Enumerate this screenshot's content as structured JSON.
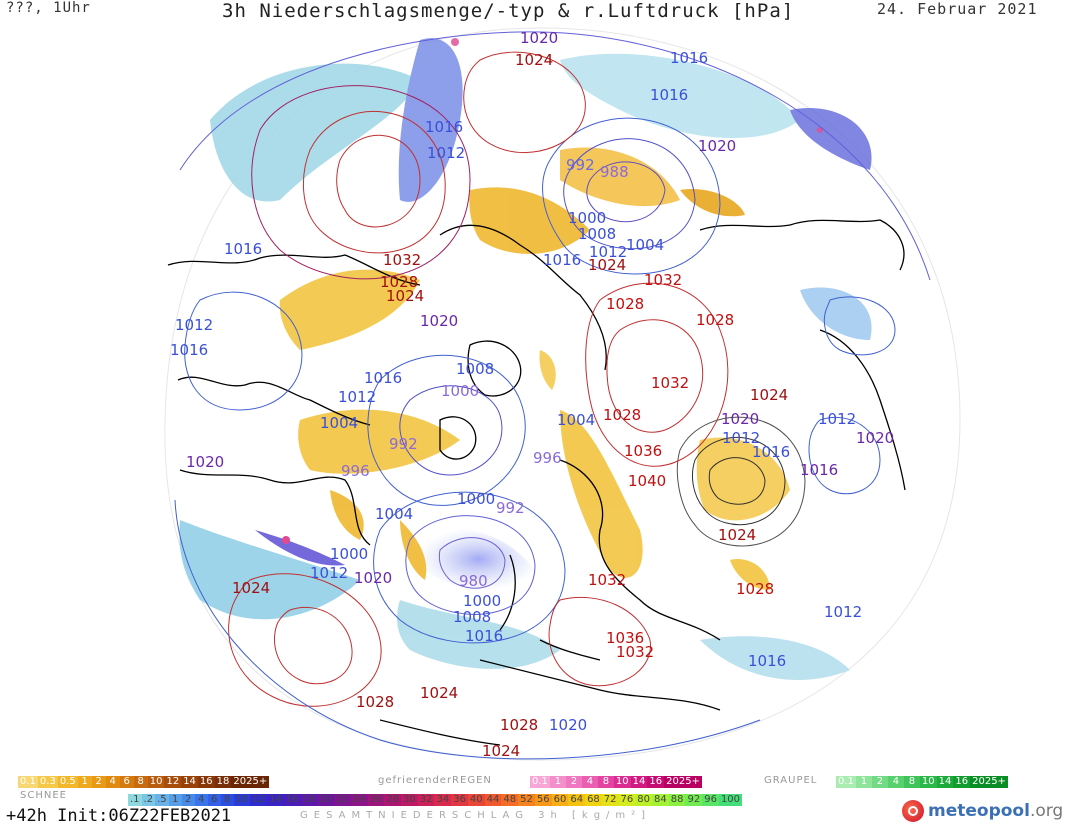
{
  "header": {
    "left": "???, 1Uhr",
    "title": "3h Niederschlagsmenge/-typ & r.Luftdruck [hPa]",
    "date": "24. Februar 2021"
  },
  "footer": {
    "run": "+42h Init:06Z22FEB2021",
    "logo_main": "meteopool",
    "logo_tld": ".org"
  },
  "legend": {
    "snow_label": "SCHNEE",
    "freezing_label": "gefrierenderREGEN",
    "graupel_label": "GRAUPEL",
    "total_label": "GESAMTNIEDERSCHLAG 3h [kg/m²]",
    "snow": [
      "0.1",
      "0.3",
      "0.5",
      "1",
      "2",
      "4",
      "6",
      "8",
      "10",
      "12",
      "14",
      "16",
      "18",
      "2025+"
    ],
    "snow_colors": [
      "#f7d774",
      "#f5c848",
      "#f2b82a",
      "#eeaa1c",
      "#e89a16",
      "#e08a12",
      "#d67a10",
      "#c86a10",
      "#b85c0e",
      "#a84e0c",
      "#98420a",
      "#883808",
      "#782e06",
      "#6a2604"
    ],
    "freezing": [
      "0.1",
      "1",
      "2",
      "4",
      "8",
      "10",
      "14",
      "16",
      "2025+"
    ],
    "freezing_colors": [
      "#f7a6d6",
      "#f390cc",
      "#ef78c0",
      "#ea5eb2",
      "#e344a2",
      "#db2c92",
      "#d01a82",
      "#c40c72",
      "#b80062"
    ],
    "graupel": [
      "0.1",
      "1",
      "2",
      "4",
      "8",
      "10",
      "14",
      "16",
      "2025+"
    ],
    "graupel_colors": [
      "#a8ecb0",
      "#8ee49a",
      "#72da84",
      "#58d06e",
      "#40c45a",
      "#2cb848",
      "#1eaa3a",
      "#129c2e",
      "#088e24"
    ],
    "total": [
      ".1",
      ".2",
      ".5",
      "1",
      "2",
      "4",
      "6",
      "8",
      "10",
      "12",
      "14",
      "16",
      "18",
      "20",
      "22",
      "24",
      "26",
      "28",
      "30",
      "32",
      "34",
      "36",
      "40",
      "44",
      "48",
      "52",
      "56",
      "60",
      "64",
      "68",
      "72",
      "76",
      "80",
      "84",
      "88",
      "92",
      "96",
      "100"
    ],
    "total_colors": [
      "#8ed8e0",
      "#7ac6e4",
      "#68b2e8",
      "#569ee8",
      "#468aea",
      "#3a74ea",
      "#3260e6",
      "#2c4ee0",
      "#2a3cd8",
      "#2e2cce",
      "#3a22c4",
      "#4a1cb8",
      "#5c18ac",
      "#6c16a0",
      "#7c1494",
      "#8c1488",
      "#9c147c",
      "#ac1670",
      "#bc1a64",
      "#cc2058",
      "#d82a4c",
      "#e23642",
      "#ea4638",
      "#f0582e",
      "#f46c26",
      "#f6821e",
      "#f89818",
      "#f8ae14",
      "#f6c212",
      "#f0d412",
      "#e4e216",
      "#d2ec1e",
      "#bcf028",
      "#a4f234",
      "#8af042",
      "#70ec52",
      "#58e664",
      "#44de78"
    ]
  },
  "isobars": [
    {
      "v": "1020",
      "c": "#6a28a8"
    },
    {
      "v": "1016",
      "c": "#3a50d8"
    },
    {
      "v": "1024",
      "c": "#a01010"
    },
    {
      "v": "1016",
      "c": "#3a50d8"
    },
    {
      "v": "1016",
      "c": "#3a50d8"
    },
    {
      "v": "1012",
      "c": "#3a50d8"
    },
    {
      "v": "1020",
      "c": "#6a28a8"
    },
    {
      "v": "992",
      "c": "#6a6ae0"
    },
    {
      "v": "988",
      "c": "#8a6ad8"
    },
    {
      "v": "1000",
      "c": "#3a50d8"
    },
    {
      "v": "1008",
      "c": "#3a50d8"
    },
    {
      "v": "1004",
      "c": "#3a50d8"
    },
    {
      "v": "1012",
      "c": "#3a50d8"
    },
    {
      "v": "1016",
      "c": "#3a50d8"
    },
    {
      "v": "1024",
      "c": "#a01010"
    },
    {
      "v": "1032",
      "c": "#c01010"
    },
    {
      "v": "1016",
      "c": "#3a50d8"
    },
    {
      "v": "1032",
      "c": "#a01010"
    },
    {
      "v": "1028",
      "c": "#a01010"
    },
    {
      "v": "1024",
      "c": "#a01010"
    },
    {
      "v": "1028",
      "c": "#c01010"
    },
    {
      "v": "1028",
      "c": "#c01010"
    },
    {
      "v": "1012",
      "c": "#3a50d8"
    },
    {
      "v": "1016",
      "c": "#3a50d8"
    },
    {
      "v": "1020",
      "c": "#6a28a8"
    },
    {
      "v": "1016",
      "c": "#3a50d8"
    },
    {
      "v": "1012",
      "c": "#3a50d8"
    },
    {
      "v": "1008",
      "c": "#3a50d8"
    },
    {
      "v": "1000",
      "c": "#8a6ad8"
    },
    {
      "v": "1032",
      "c": "#c01010"
    },
    {
      "v": "1024",
      "c": "#a01010"
    },
    {
      "v": "1004",
      "c": "#3a50d8"
    },
    {
      "v": "992",
      "c": "#8a6ad8"
    },
    {
      "v": "1004",
      "c": "#3a50d8"
    },
    {
      "v": "1028",
      "c": "#c01010"
    },
    {
      "v": "1020",
      "c": "#6a28a8"
    },
    {
      "v": "1012",
      "c": "#3a50d8"
    },
    {
      "v": "1012",
      "c": "#3a50d8"
    },
    {
      "v": "1020",
      "c": "#6a28a8"
    },
    {
      "v": "1036",
      "c": "#c01010"
    },
    {
      "v": "1016",
      "c": "#3a50d8"
    },
    {
      "v": "1020",
      "c": "#6a28a8"
    },
    {
      "v": "996",
      "c": "#8a6ad8"
    },
    {
      "v": "996",
      "c": "#8a6ad8"
    },
    {
      "v": "1040",
      "c": "#c01010"
    },
    {
      "v": "1016",
      "c": "#6a28a8"
    },
    {
      "v": "1000",
      "c": "#3a50d8"
    },
    {
      "v": "992",
      "c": "#8a6ad8"
    },
    {
      "v": "1004",
      "c": "#3a50d8"
    },
    {
      "v": "1024",
      "c": "#a01010"
    },
    {
      "v": "1000",
      "c": "#3a50d8"
    },
    {
      "v": "1012",
      "c": "#3a50d8"
    },
    {
      "v": "1020",
      "c": "#6a28a8"
    },
    {
      "v": "1024",
      "c": "#a01010"
    },
    {
      "v": "980",
      "c": "#8a6ad8"
    },
    {
      "v": "1032",
      "c": "#c01010"
    },
    {
      "v": "1028",
      "c": "#c01010"
    },
    {
      "v": "1000",
      "c": "#3a50d8"
    },
    {
      "v": "1008",
      "c": "#3a50d8"
    },
    {
      "v": "1012",
      "c": "#3a50d8"
    },
    {
      "v": "1016",
      "c": "#3a50d8"
    },
    {
      "v": "1036",
      "c": "#c01010"
    },
    {
      "v": "1032",
      "c": "#c01010"
    },
    {
      "v": "1016",
      "c": "#3a50d8"
    },
    {
      "v": "1028",
      "c": "#a01010"
    },
    {
      "v": "1024",
      "c": "#a01010"
    },
    {
      "v": "1028",
      "c": "#a01010"
    },
    {
      "v": "1020",
      "c": "#3a50d8"
    },
    {
      "v": "1024",
      "c": "#a01010"
    }
  ]
}
